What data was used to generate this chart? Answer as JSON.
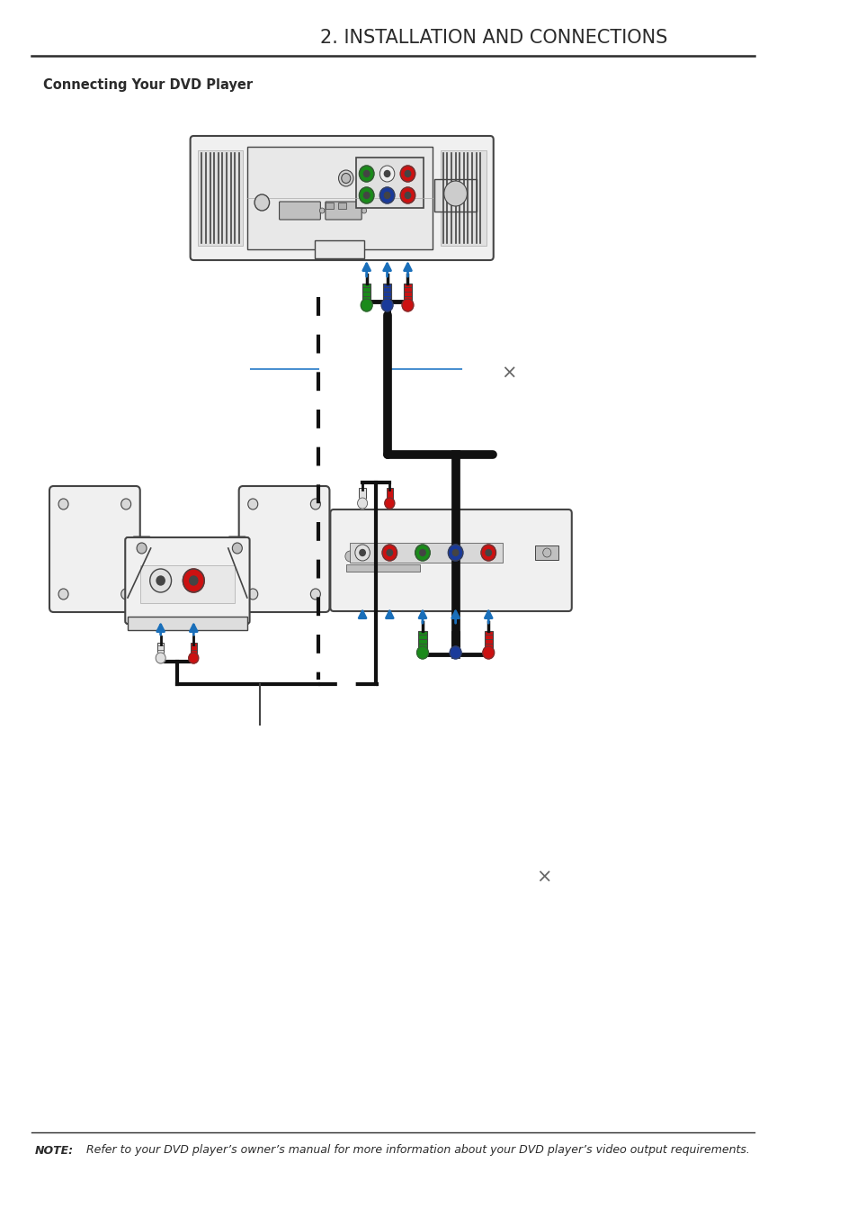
{
  "title": "2. INSTALLATION AND CONNECTIONS",
  "section_title": "Connecting Your DVD Player",
  "note_bold": "NOTE:",
  "note_rest": " Refer to your DVD player’s owner’s manual for more information about your DVD player’s video output requirements.",
  "bg_color": "#ffffff",
  "title_color": "#2b2b2b",
  "line_color": "#2b2b2b",
  "blue_arrow": "#1a6fba",
  "black_color": "#111111",
  "green_color": "#1a8a1a",
  "red_color": "#cc1111",
  "dkblue_color": "#1a3a9a",
  "gray_color": "#888888",
  "light_gray": "#d8d8d8",
  "dark_gray": "#444444",
  "med_gray": "#aaaaaa",
  "proj_body": "#f0f0f0",
  "proj_stripe": "#cccccc",
  "dashed_blue": "#4a90d0",
  "dashed_black": "#111111",
  "label_blue": "#4a90d0"
}
